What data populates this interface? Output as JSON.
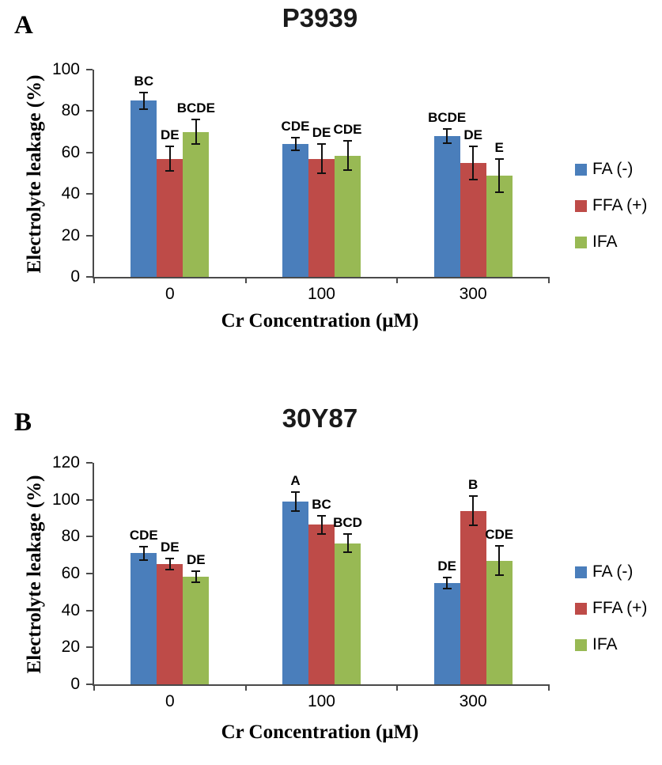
{
  "figure": {
    "background": "#ffffff",
    "axis_color": "#4a4a4a",
    "error_bar_color": "#111111"
  },
  "chart_data": [
    {
      "type": "bar",
      "panel_letter": "A",
      "title": "P3939",
      "ylabel": "Electrolyte leakage (%)",
      "xlabel": "Cr Concentration (μM)",
      "ylim": [
        0,
        100
      ],
      "ytick_step": 20,
      "grid": false,
      "legend_position": "right",
      "categories": [
        "0",
        "100",
        "300"
      ],
      "series": [
        {
          "name": "FA (-)",
          "color": "#4a7ebb",
          "values": [
            85,
            64,
            68
          ],
          "errors": [
            4,
            3,
            3.5
          ],
          "letters": [
            "BC",
            "CDE",
            "BCDE"
          ]
        },
        {
          "name": "FFA (+)",
          "color": "#be4b48",
          "values": [
            57,
            57,
            55
          ],
          "errors": [
            6,
            7,
            8
          ],
          "letters": [
            "DE",
            "DE",
            "DE"
          ]
        },
        {
          "name": "IFA",
          "color": "#98b954",
          "values": [
            70,
            58.5,
            49
          ],
          "errors": [
            6,
            7,
            8
          ],
          "letters": [
            "BCDE",
            "CDE",
            "E"
          ]
        }
      ]
    },
    {
      "type": "bar",
      "panel_letter": "B",
      "title": "30Y87",
      "ylabel": "Electrolyte leakage (%)",
      "xlabel": "Cr Concentration (μM)",
      "ylim": [
        0,
        120
      ],
      "ytick_step": 20,
      "grid": false,
      "legend_position": "right",
      "categories": [
        "0",
        "100",
        "300"
      ],
      "series": [
        {
          "name": "FA (-)",
          "color": "#4a7ebb",
          "values": [
            71,
            99,
            55
          ],
          "errors": [
            3.5,
            5,
            3
          ],
          "letters": [
            "CDE",
            "A",
            "DE"
          ]
        },
        {
          "name": "FFA (+)",
          "color": "#be4b48",
          "values": [
            65,
            86.5,
            94
          ],
          "errors": [
            3,
            5,
            8
          ],
          "letters": [
            "DE",
            "BC",
            "B"
          ]
        },
        {
          "name": "IFA",
          "color": "#98b954",
          "values": [
            58.5,
            76.5,
            67
          ],
          "errors": [
            3,
            5,
            8
          ],
          "letters": [
            "DE",
            "BCD",
            "CDE"
          ]
        }
      ]
    }
  ]
}
